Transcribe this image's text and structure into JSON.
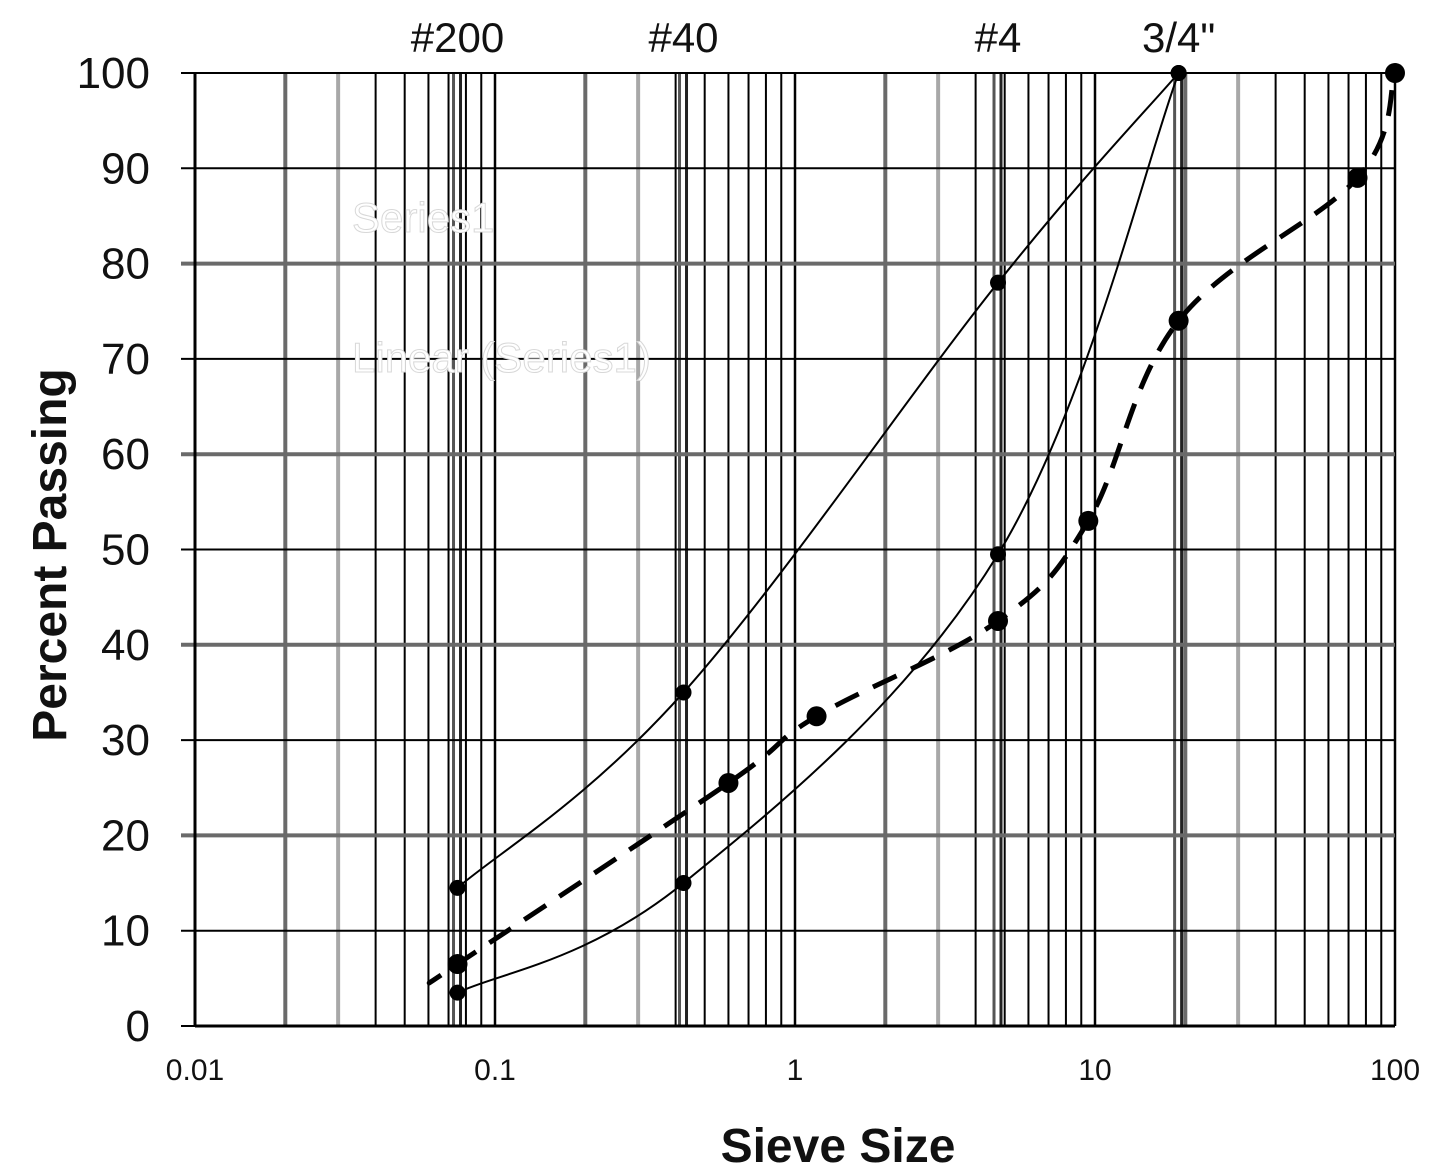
{
  "chart_data": {
    "type": "line",
    "title": "",
    "xlabel": "Sieve Size",
    "ylabel": "Percent Passing",
    "xscale": "log",
    "xlim": [
      0.01,
      100
    ],
    "ylim": [
      0,
      100
    ],
    "grid": true,
    "x_tick_labels": [
      "0.01",
      "0.1",
      "1",
      "10",
      "100"
    ],
    "y_tick_labels": [
      "0",
      "10",
      "20",
      "30",
      "40",
      "50",
      "60",
      "70",
      "80",
      "90",
      "100"
    ],
    "sieve_labels": [
      {
        "label": "#200",
        "size": 0.075
      },
      {
        "label": "#40",
        "size": 0.425
      },
      {
        "label": "#4",
        "size": 4.75
      },
      {
        "label": "3/4\"",
        "size": 19
      }
    ],
    "legend": [
      "Series1",
      "Linear (Series1)"
    ],
    "series": [
      {
        "style": "solid-upper",
        "x": [
          0.075,
          0.425,
          4.75,
          19
        ],
        "y": [
          14.5,
          35,
          78,
          100
        ]
      },
      {
        "style": "solid-lower",
        "x": [
          0.075,
          0.425,
          4.75,
          19
        ],
        "y": [
          3.5,
          15,
          49.5,
          100
        ]
      },
      {
        "style": "dashed",
        "x": [
          0.075,
          0.6,
          1.18,
          4.75,
          9.5,
          19,
          75,
          100
        ],
        "y": [
          6.5,
          25.5,
          32.5,
          42.5,
          53,
          74,
          89,
          100
        ]
      }
    ]
  }
}
